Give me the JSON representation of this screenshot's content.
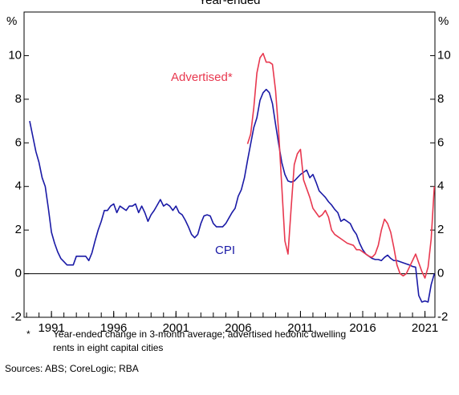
{
  "chart_data": {
    "type": "line",
    "title": "Year-ended",
    "ylabel": "%",
    "y2label": "%",
    "xlim": [
      1988.8,
      2021.8
    ],
    "xticks": [
      1991,
      1996,
      2001,
      2006,
      2011,
      2016,
      2021
    ],
    "xminorticks": [
      1989,
      1990,
      1991,
      1992,
      1993,
      1994,
      1995,
      1996,
      1997,
      1998,
      1999,
      2000,
      2001,
      2002,
      2003,
      2004,
      2005,
      2006,
      2007,
      2008,
      2009,
      2010,
      2011,
      2012,
      2013,
      2014,
      2015,
      2016,
      2017,
      2018,
      2019,
      2020,
      2021
    ],
    "ylim": [
      -2,
      12
    ],
    "yticks": [
      -2,
      0,
      2,
      4,
      6,
      8,
      10
    ],
    "y2lim": [
      -2,
      12
    ],
    "y2ticks": [
      -2,
      0,
      2,
      4,
      6,
      8,
      10
    ],
    "grid": false,
    "series": [
      {
        "name": "CPI",
        "color": "#1a1aa6",
        "x": [
          1989.25,
          1989.5,
          1989.75,
          1990,
          1990.25,
          1990.5,
          1990.75,
          1991,
          1991.25,
          1991.5,
          1991.75,
          1992,
          1992.25,
          1992.5,
          1992.75,
          1993,
          1993.25,
          1993.5,
          1993.75,
          1994,
          1994.25,
          1994.5,
          1994.75,
          1995,
          1995.25,
          1995.5,
          1995.75,
          1996,
          1996.25,
          1996.5,
          1996.75,
          1997,
          1997.25,
          1997.5,
          1997.75,
          1998,
          1998.25,
          1998.5,
          1998.75,
          1999,
          1999.25,
          1999.5,
          1999.75,
          2000,
          2000.25,
          2000.5,
          2000.75,
          2001,
          2001.25,
          2001.5,
          2001.75,
          2002,
          2002.25,
          2002.5,
          2002.75,
          2003,
          2003.25,
          2003.5,
          2003.75,
          2004,
          2004.25,
          2004.5,
          2004.75,
          2005,
          2005.25,
          2005.5,
          2005.75,
          2006,
          2006.25,
          2006.5,
          2006.75,
          2007,
          2007.25,
          2007.5,
          2007.75,
          2008,
          2008.25,
          2008.5,
          2008.75,
          2009,
          2009.25,
          2009.5,
          2009.75,
          2010,
          2010.25,
          2010.5,
          2010.75,
          2011,
          2011.25,
          2011.5,
          2011.75,
          2012,
          2012.25,
          2012.5,
          2012.75,
          2013,
          2013.25,
          2013.5,
          2013.75,
          2014,
          2014.25,
          2014.5,
          2014.75,
          2015,
          2015.25,
          2015.5,
          2015.75,
          2016,
          2016.25,
          2016.5,
          2016.75,
          2017,
          2017.25,
          2017.5,
          2017.75,
          2018,
          2018.25,
          2018.5,
          2018.75,
          2019,
          2019.25,
          2019.5,
          2019.75,
          2020,
          2020.25,
          2020.5,
          2020.75,
          2021,
          2021.25,
          2021.5,
          2021.75
        ],
        "values": [
          7.0,
          6.3,
          5.6,
          5.1,
          4.4,
          4.0,
          3.0,
          1.9,
          1.4,
          1.0,
          0.7,
          0.55,
          0.4,
          0.4,
          0.4,
          0.8,
          0.8,
          0.8,
          0.8,
          0.6,
          0.95,
          1.5,
          2.0,
          2.4,
          2.9,
          2.9,
          3.1,
          3.2,
          2.8,
          3.1,
          3.0,
          2.9,
          3.1,
          3.1,
          3.2,
          2.8,
          3.1,
          2.8,
          2.4,
          2.7,
          2.9,
          3.15,
          3.4,
          3.1,
          3.2,
          3.1,
          2.9,
          3.1,
          2.8,
          2.7,
          2.45,
          2.15,
          1.8,
          1.65,
          1.8,
          2.3,
          2.65,
          2.7,
          2.65,
          2.3,
          2.15,
          2.15,
          2.15,
          2.3,
          2.55,
          2.8,
          3.0,
          3.55,
          3.85,
          4.4,
          5.2,
          5.95,
          6.7,
          7.15,
          7.95,
          8.3,
          8.45,
          8.3,
          7.8,
          6.85,
          5.95,
          5.1,
          4.55,
          4.25,
          4.2,
          4.25,
          4.4,
          4.55,
          4.65,
          4.75,
          4.4,
          4.55,
          4.2,
          3.8,
          3.65,
          3.5,
          3.3,
          3.15,
          2.95,
          2.8,
          2.4,
          2.5,
          2.4,
          2.3,
          2.0,
          1.8,
          1.4,
          1.1,
          0.9,
          0.8,
          0.7,
          0.65,
          0.65,
          0.6,
          0.75,
          0.85,
          0.7,
          0.6,
          0.6,
          0.55,
          0.5,
          0.45,
          0.4,
          0.33,
          0.3,
          -1.0,
          -1.3,
          -1.25,
          -1.3,
          -0.5,
          0.0
        ]
      },
      {
        "name": "Advertised*",
        "color": "#e8384f",
        "x": [
          2006.75,
          2007,
          2007.25,
          2007.5,
          2007.75,
          2008,
          2008.25,
          2008.5,
          2008.75,
          2009,
          2009.25,
          2009.5,
          2009.75,
          2010,
          2010.25,
          2010.5,
          2010.75,
          2011,
          2011.25,
          2011.5,
          2011.75,
          2012,
          2012.25,
          2012.5,
          2012.75,
          2013,
          2013.25,
          2013.5,
          2013.75,
          2014,
          2014.25,
          2014.5,
          2014.75,
          2015,
          2015.25,
          2015.5,
          2015.75,
          2016,
          2016.25,
          2016.5,
          2016.75,
          2017,
          2017.25,
          2017.5,
          2017.75,
          2018,
          2018.25,
          2018.5,
          2018.75,
          2019,
          2019.25,
          2019.5,
          2019.75,
          2020,
          2020.25,
          2020.5,
          2020.75,
          2021,
          2021.25,
          2021.5,
          2021.75
        ],
        "values": [
          5.95,
          6.4,
          7.6,
          9.2,
          9.9,
          10.1,
          9.7,
          9.7,
          9.6,
          8.4,
          6.5,
          4.0,
          1.5,
          0.9,
          3.0,
          5.0,
          5.5,
          5.7,
          4.3,
          3.9,
          3.5,
          3.0,
          2.8,
          2.6,
          2.7,
          2.9,
          2.6,
          2.0,
          1.8,
          1.7,
          1.6,
          1.5,
          1.4,
          1.35,
          1.3,
          1.1,
          1.1,
          1.0,
          0.9,
          0.8,
          0.75,
          0.9,
          1.3,
          2.0,
          2.5,
          2.3,
          1.9,
          1.2,
          0.4,
          0.0,
          -0.1,
          0.0,
          0.3,
          0.6,
          0.9,
          0.5,
          0.1,
          -0.2,
          0.3,
          1.6,
          4.0
        ]
      }
    ],
    "footnote": {
      "marker": "*",
      "lines": [
        "Year-ended change in 3-month average; advertised hedonic dwelling",
        "rents in eight capital cities"
      ]
    },
    "sources": "Sources: ABS; CoreLogic; RBA"
  }
}
